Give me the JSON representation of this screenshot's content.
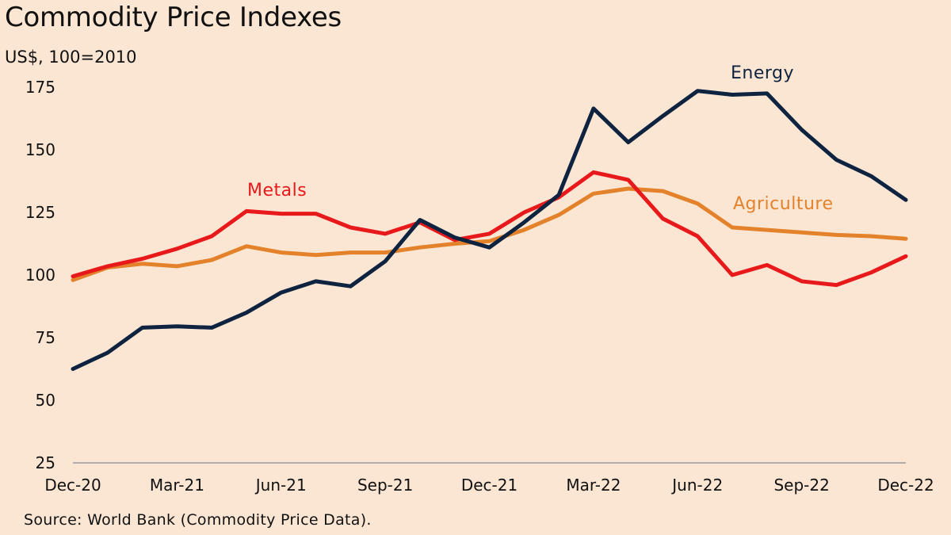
{
  "header": {
    "title": "Commodity Price Indexes",
    "subtitle": "US$, 100=2010"
  },
  "footer": {
    "source": "Source: World Bank (Commodity Price Data)."
  },
  "chart_data": {
    "type": "line",
    "title": "Commodity Price Indexes",
    "ylabel": "US$, 100=2010",
    "xlabel": "",
    "ylim": [
      25,
      175
    ],
    "yticks": [
      25,
      50,
      75,
      100,
      125,
      150,
      175
    ],
    "x": [
      "Dec-20",
      "Jan-21",
      "Feb-21",
      "Mar-21",
      "Apr-21",
      "May-21",
      "Jun-21",
      "Jul-21",
      "Aug-21",
      "Sep-21",
      "Oct-21",
      "Nov-21",
      "Dec-21",
      "Jan-22",
      "Feb-22",
      "Mar-22",
      "Apr-22",
      "May-22",
      "Jun-22",
      "Jul-22",
      "Aug-22",
      "Sep-22",
      "Oct-22",
      "Nov-22",
      "Dec-22"
    ],
    "xtick_labels": [
      "Dec-20",
      "Mar-21",
      "Jun-21",
      "Sep-21",
      "Dec-21",
      "Mar-22",
      "Jun-22",
      "Sep-22",
      "Dec-22"
    ],
    "xtick_indices": [
      0,
      3,
      6,
      9,
      12,
      15,
      18,
      21,
      24
    ],
    "series": [
      {
        "name": "Energy",
        "color": "#0E2340",
        "values": [
          62.5,
          69,
          79,
          79.5,
          79,
          85,
          93,
          97.5,
          95.5,
          105.5,
          122,
          115,
          111,
          121,
          132,
          166.5,
          153,
          163.5,
          173.5,
          172,
          172.5,
          158,
          146,
          139.5,
          130
        ]
      },
      {
        "name": "Metals",
        "color": "#E8191B",
        "values": [
          99.5,
          103.5,
          106.5,
          110.5,
          115.5,
          125.5,
          124.5,
          124.5,
          119,
          116.5,
          121,
          114,
          116.5,
          125,
          131,
          141,
          138,
          122.5,
          115.5,
          100,
          104,
          97.5,
          96,
          101,
          107.5
        ]
      },
      {
        "name": "Agriculture",
        "color": "#E3822B",
        "values": [
          98,
          103,
          104.5,
          103.5,
          106,
          111.5,
          109,
          108,
          109,
          109,
          111,
          112.5,
          113.5,
          118,
          124,
          132.5,
          134.5,
          133.5,
          128.5,
          119,
          118,
          117,
          116,
          115.5,
          114.5
        ]
      }
    ],
    "series_labels": [
      "Energy",
      "Metals",
      "Agriculture"
    ]
  }
}
